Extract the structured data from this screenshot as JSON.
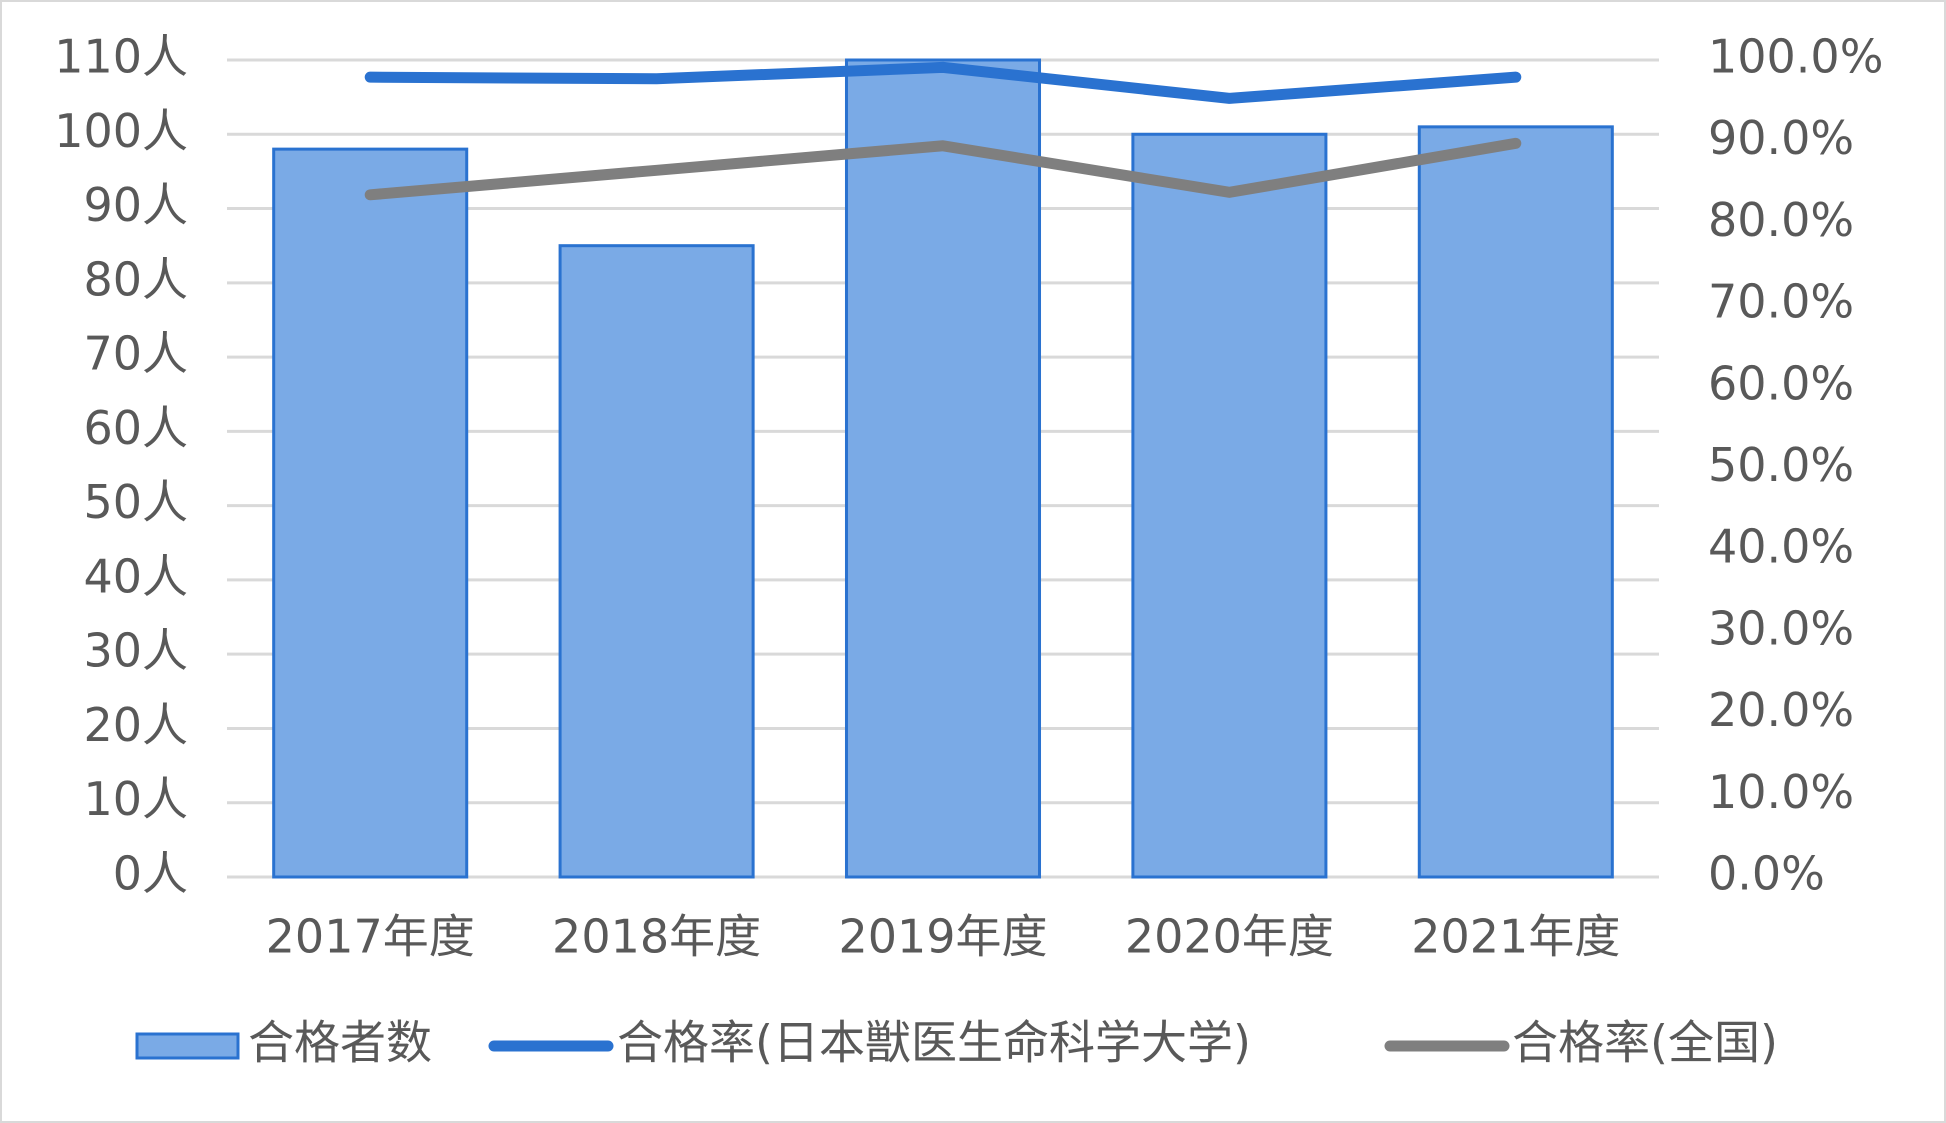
{
  "chart_data": {
    "type": "bar",
    "categories": [
      "2017年度",
      "2018年度",
      "2019年度",
      "2020年度",
      "2021年度"
    ],
    "series": [
      {
        "name": "合格者数",
        "type": "bar",
        "color": "#7aaae6",
        "values": [
          98,
          85,
          110,
          100,
          101
        ]
      },
      {
        "name": "合格率(日本獣医生命科学大学)",
        "type": "line",
        "axis": "y2",
        "color": "#2a72d0",
        "values": [
          97.9,
          97.7,
          99.1,
          95.3,
          97.9
        ]
      },
      {
        "name": "合格率(全国)",
        "type": "line",
        "axis": "y2",
        "color": "#7f7f7f",
        "values": [
          83.5,
          86.5,
          89.5,
          83.8,
          89.8
        ]
      }
    ],
    "ylim": [
      0,
      110
    ],
    "yticks": [
      {
        "value": 0,
        "label": "0人"
      },
      {
        "value": 10,
        "label": "10人"
      },
      {
        "value": 20,
        "label": "20人"
      },
      {
        "value": 30,
        "label": "30人"
      },
      {
        "value": 40,
        "label": "40人"
      },
      {
        "value": 50,
        "label": "50人"
      },
      {
        "value": 60,
        "label": "60人"
      },
      {
        "value": 70,
        "label": "70人"
      },
      {
        "value": 80,
        "label": "80人"
      },
      {
        "value": 90,
        "label": "90人"
      },
      {
        "value": 100,
        "label": "100人"
      },
      {
        "value": 110,
        "label": "110人"
      }
    ],
    "y2lim": [
      0,
      100
    ],
    "y2ticks": [
      {
        "value": 0,
        "label": "0.0%"
      },
      {
        "value": 10,
        "label": "10.0%"
      },
      {
        "value": 20,
        "label": "20.0%"
      },
      {
        "value": 30,
        "label": "30.0%"
      },
      {
        "value": 40,
        "label": "40.0%"
      },
      {
        "value": 50,
        "label": "50.0%"
      },
      {
        "value": 60,
        "label": "60.0%"
      },
      {
        "value": 70,
        "label": "70.0%"
      },
      {
        "value": 80,
        "label": "80.0%"
      },
      {
        "value": 90,
        "label": "90.0%"
      },
      {
        "value": 100,
        "label": "100.0%"
      }
    ],
    "grid": true,
    "legend": "bottom"
  }
}
